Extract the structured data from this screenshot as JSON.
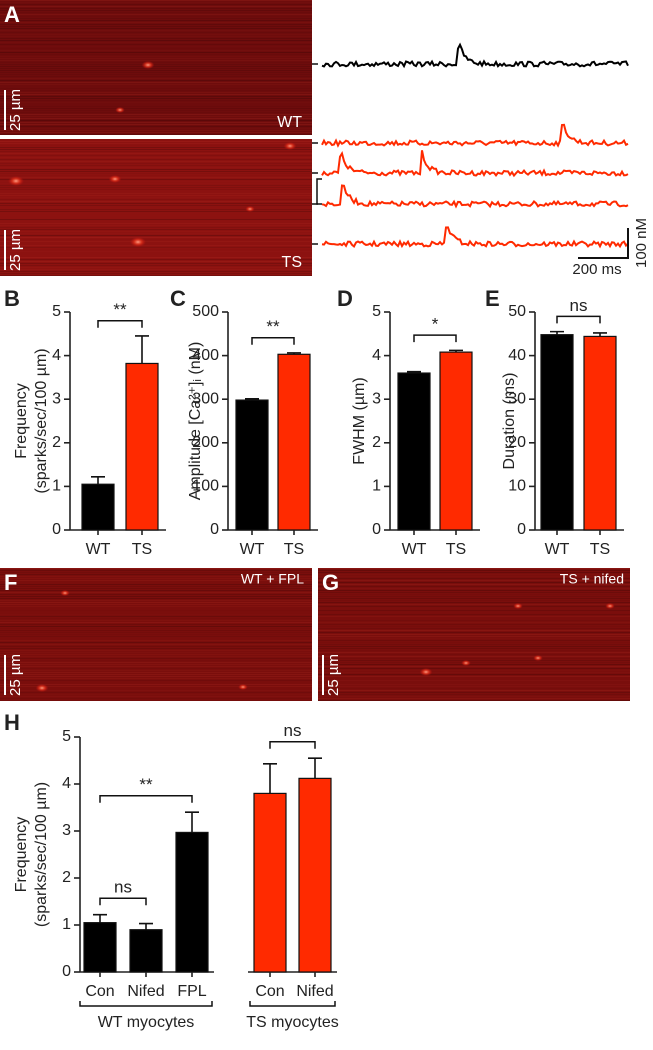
{
  "images": {
    "A": {
      "label": "A",
      "wt_label": "WT",
      "ts_label": "TS",
      "scale": "25 µm",
      "amp_scale": "100 nM",
      "time_scale": "200 ms"
    },
    "F": {
      "label": "F",
      "caption": "WT + FPL",
      "scale": "25 µm"
    },
    "G": {
      "label": "G",
      "caption": "TS + nifed",
      "scale": "25 µm"
    }
  },
  "chart_data": [
    {
      "type": "bar",
      "label": "B",
      "ylabel": [
        "Frequency",
        "(sparks/sec/100 µm)"
      ],
      "categories": [
        "WT",
        "TS"
      ],
      "values": [
        1.05,
        3.82
      ],
      "errors": [
        0.17,
        0.63
      ],
      "colors": [
        "#000000",
        "#ff2a00"
      ],
      "ylim": [
        0,
        5
      ],
      "yticks": [
        0,
        1,
        2,
        3,
        4,
        5
      ],
      "annotations": [
        "**"
      ]
    },
    {
      "type": "bar",
      "label": "C",
      "ylabel": "Amplitude [Ca²⁺]ᵢ (nM)",
      "categories": [
        "WT",
        "TS"
      ],
      "values": [
        298,
        403
      ],
      "errors": [
        3,
        3
      ],
      "colors": [
        "#000000",
        "#ff2a00"
      ],
      "ylim": [
        0,
        500
      ],
      "yticks": [
        0,
        100,
        200,
        300,
        400,
        500
      ],
      "annotations": [
        "**"
      ]
    },
    {
      "type": "bar",
      "label": "D",
      "ylabel": "FWHM (µm)",
      "categories": [
        "WT",
        "TS"
      ],
      "values": [
        3.6,
        4.08
      ],
      "errors": [
        0.03,
        0.04
      ],
      "colors": [
        "#000000",
        "#ff2a00"
      ],
      "ylim": [
        0,
        5
      ],
      "yticks": [
        0,
        1,
        2,
        3,
        4,
        5
      ],
      "annotations": [
        "*"
      ]
    },
    {
      "type": "bar",
      "label": "E",
      "ylabel": "Duration (ms)",
      "categories": [
        "WT",
        "TS"
      ],
      "values": [
        44.8,
        44.4
      ],
      "errors": [
        0.7,
        0.8
      ],
      "colors": [
        "#000000",
        "#ff2a00"
      ],
      "ylim": [
        0,
        50
      ],
      "yticks": [
        0,
        10,
        20,
        30,
        40,
        50
      ],
      "annotations": [
        "ns"
      ]
    },
    {
      "type": "bar",
      "label": "H",
      "ylabel": [
        "Frequency",
        "(sparks/sec/100 µm)"
      ],
      "ylim": [
        0,
        5
      ],
      "yticks": [
        0,
        1,
        2,
        3,
        4,
        5
      ],
      "annotations": [
        "ns",
        "**",
        "ns"
      ],
      "groups": [
        {
          "name": "WT myocytes",
          "color": "#000000",
          "categories": [
            "Con",
            "Nifed",
            "FPL"
          ],
          "values": [
            1.05,
            0.9,
            2.97
          ],
          "errors": [
            0.17,
            0.13,
            0.43
          ]
        },
        {
          "name": "TS myocytes",
          "color": "#ff2a00",
          "categories": [
            "Con",
            "Nifed"
          ],
          "values": [
            3.8,
            4.12
          ],
          "errors": [
            0.63,
            0.43
          ]
        }
      ]
    }
  ]
}
